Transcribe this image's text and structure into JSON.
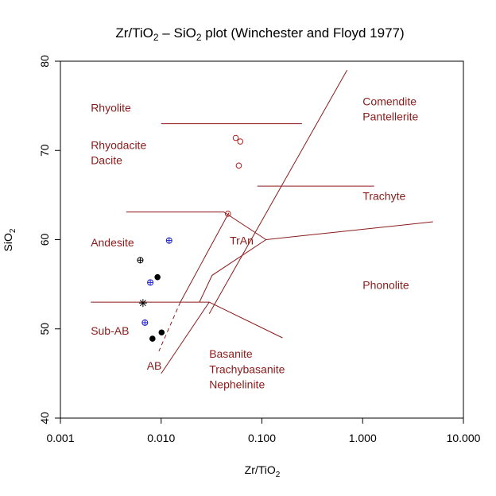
{
  "chart_data": {
    "type": "scatter",
    "title": {
      "prefix": "Zr",
      "slash": "/",
      "tio": "TiO",
      "tio_sub": "2",
      "dash": " –  SiO",
      "sio_sub": "2",
      "suffix": " plot (Winchester and Floyd 1977)"
    },
    "xlabel": {
      "main": "Zr",
      "slash": "/",
      "tio": "TiO",
      "sub": "2"
    },
    "ylabel": {
      "main": "SiO",
      "sub": "2"
    },
    "xscale": "log",
    "xlim": [
      0.001,
      10
    ],
    "ylim": [
      40,
      80
    ],
    "x_ticks": [
      {
        "value": 0.001,
        "label": "0.001"
      },
      {
        "value": 0.01,
        "label": "0.010"
      },
      {
        "value": 0.1,
        "label": "0.100"
      },
      {
        "value": 1,
        "label": "1.000"
      },
      {
        "value": 10,
        "label": "10.000"
      }
    ],
    "y_ticks": [
      {
        "value": 40,
        "label": "40"
      },
      {
        "value": 50,
        "label": "50"
      },
      {
        "value": 60,
        "label": "60"
      },
      {
        "value": 70,
        "label": "70"
      },
      {
        "value": 80,
        "label": "80"
      }
    ],
    "field_color": "#8b1a1a",
    "field_lines": [
      {
        "style": "solid",
        "points": [
          [
            0.01,
            73.0
          ],
          [
            0.25,
            73.0
          ]
        ]
      },
      {
        "style": "solid",
        "points": [
          [
            0.03,
            51.7
          ],
          [
            0.7,
            79.0
          ]
        ]
      },
      {
        "style": "solid",
        "points": [
          [
            0.09,
            66.0
          ],
          [
            1.3,
            66.0
          ]
        ]
      },
      {
        "style": "solid",
        "points": [
          [
            0.0045,
            63.1
          ],
          [
            0.042,
            63.1
          ],
          [
            0.11,
            60.0
          ],
          [
            5.0,
            62.0
          ]
        ]
      },
      {
        "style": "solid",
        "points": [
          [
            0.0155,
            53.0
          ],
          [
            0.047,
            63.0
          ]
        ]
      },
      {
        "style": "solid",
        "points": [
          [
            0.11,
            60.0
          ],
          [
            0.032,
            56.0
          ],
          [
            0.024,
            53.0
          ]
        ]
      },
      {
        "style": "solid",
        "points": [
          [
            0.002,
            53.0
          ],
          [
            0.03,
            53.0
          ],
          [
            0.16,
            49.0
          ]
        ]
      },
      {
        "style": "solid",
        "points": [
          [
            0.03,
            53.0
          ],
          [
            0.01,
            45.0
          ]
        ]
      },
      {
        "style": "dashed",
        "points": [
          [
            0.0155,
            53.0
          ],
          [
            0.0095,
            47.5
          ]
        ]
      }
    ],
    "field_labels": [
      {
        "text": "Rhyolite",
        "x": 0.002,
        "y": 74.8
      },
      {
        "text": "Rhyodacite",
        "x": 0.002,
        "y": 70.6
      },
      {
        "text": "Dacite",
        "x": 0.002,
        "y": 68.9
      },
      {
        "text": "Comendite",
        "x": 1.0,
        "y": 75.5
      },
      {
        "text": "Pantellerite",
        "x": 1.0,
        "y": 73.8
      },
      {
        "text": "Trachyte",
        "x": 1.0,
        "y": 64.9
      },
      {
        "text": "Andesite",
        "x": 0.002,
        "y": 59.7
      },
      {
        "text": "TrAn",
        "x": 0.048,
        "y": 59.9
      },
      {
        "text": "Phonolite",
        "x": 1.0,
        "y": 54.9
      },
      {
        "text": "Sub-AB",
        "x": 0.002,
        "y": 49.8
      },
      {
        "text": "AB",
        "x": 0.0072,
        "y": 45.9
      },
      {
        "text": "Basanite",
        "x": 0.03,
        "y": 47.2
      },
      {
        "text": "Trachybasanite",
        "x": 0.03,
        "y": 45.5
      },
      {
        "text": "Nephelinite",
        "x": 0.03,
        "y": 43.8
      }
    ],
    "series": [
      {
        "marker": "open-circle",
        "color": "#b22222",
        "points": [
          [
            0.055,
            71.4
          ],
          [
            0.061,
            71.0
          ],
          [
            0.059,
            68.3
          ],
          [
            0.046,
            62.9
          ]
        ]
      },
      {
        "marker": "crossed-circle",
        "color": "#1c1cd0",
        "points": [
          [
            0.012,
            59.9
          ],
          [
            0.0078,
            55.2
          ],
          [
            0.0069,
            50.7
          ]
        ]
      },
      {
        "marker": "crossed-circle",
        "color": "#000000",
        "points": [
          [
            0.0062,
            57.7
          ]
        ]
      },
      {
        "marker": "filled-circle",
        "color": "#000000",
        "points": [
          [
            0.0092,
            55.8
          ],
          [
            0.0101,
            49.6
          ],
          [
            0.0082,
            48.9
          ]
        ]
      },
      {
        "marker": "asterisk",
        "color": "#000000",
        "points": [
          [
            0.0066,
            52.9
          ]
        ]
      }
    ]
  }
}
